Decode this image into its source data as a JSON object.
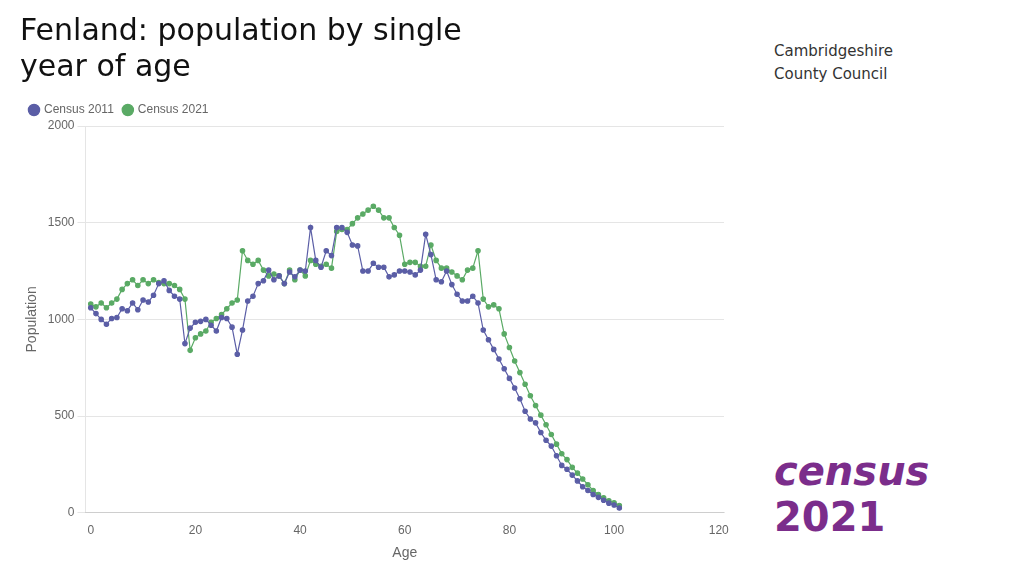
{
  "chart_data": {
    "type": "line",
    "title": [
      "Fenland: population by single",
      "year of age"
    ],
    "x_label": "Age",
    "y_label": "Population",
    "x": [
      0,
      1,
      2,
      3,
      4,
      5,
      6,
      7,
      8,
      9,
      10,
      11,
      12,
      13,
      14,
      15,
      16,
      17,
      18,
      19,
      20,
      21,
      22,
      23,
      24,
      25,
      26,
      27,
      28,
      29,
      30,
      31,
      32,
      33,
      34,
      35,
      36,
      37,
      38,
      39,
      40,
      41,
      42,
      43,
      44,
      45,
      46,
      47,
      48,
      49,
      50,
      51,
      52,
      53,
      54,
      55,
      56,
      57,
      58,
      59,
      60,
      61,
      62,
      63,
      64,
      65,
      66,
      67,
      68,
      69,
      70,
      71,
      72,
      73,
      74,
      75,
      76,
      77,
      78,
      79,
      80,
      81,
      82,
      83,
      84,
      85,
      86,
      87,
      88,
      89,
      90,
      91,
      92,
      93,
      94,
      95,
      96,
      97,
      98,
      99,
      100,
      101
    ],
    "series": [
      {
        "name": "Census 2011",
        "color": "#5b5ea6",
        "marker": "circle",
        "line_style": "solid",
        "values": [
          1060,
          1030,
          1000,
          975,
          1005,
          1010,
          1055,
          1045,
          1085,
          1050,
          1100,
          1090,
          1125,
          1185,
          1200,
          1150,
          1120,
          1105,
          875,
          955,
          985,
          990,
          1000,
          970,
          940,
          1010,
          1005,
          960,
          820,
          945,
          1095,
          1120,
          1185,
          1200,
          1255,
          1205,
          1225,
          1185,
          1245,
          1220,
          1255,
          1250,
          1475,
          1305,
          1270,
          1355,
          1330,
          1475,
          1475,
          1450,
          1385,
          1380,
          1250,
          1250,
          1290,
          1270,
          1270,
          1220,
          1230,
          1250,
          1250,
          1245,
          1230,
          1255,
          1440,
          1335,
          1205,
          1195,
          1250,
          1180,
          1130,
          1095,
          1095,
          1120,
          1085,
          945,
          895,
          845,
          795,
          745,
          695,
          645,
          590,
          525,
          485,
          465,
          415,
          375,
          345,
          295,
          245,
          225,
          195,
          165,
          135,
          115,
          95,
          80,
          65,
          50,
          40,
          25
        ]
      },
      {
        "name": "Census 2021",
        "color": "#5aaa65",
        "marker": "circle",
        "line_style": "solid",
        "values": [
          1080,
          1065,
          1085,
          1060,
          1085,
          1105,
          1155,
          1185,
          1205,
          1175,
          1205,
          1185,
          1205,
          1190,
          1185,
          1185,
          1175,
          1155,
          1105,
          840,
          905,
          925,
          940,
          985,
          1005,
          1025,
          1055,
          1085,
          1100,
          1355,
          1305,
          1285,
          1305,
          1255,
          1225,
          1235,
          1225,
          1185,
          1255,
          1205,
          1255,
          1225,
          1305,
          1285,
          1275,
          1285,
          1265,
          1455,
          1465,
          1465,
          1495,
          1525,
          1545,
          1565,
          1585,
          1565,
          1525,
          1525,
          1475,
          1435,
          1285,
          1295,
          1295,
          1275,
          1275,
          1385,
          1305,
          1265,
          1265,
          1245,
          1225,
          1205,
          1255,
          1265,
          1355,
          1105,
          1065,
          1075,
          1055,
          925,
          855,
          785,
          725,
          665,
          605,
          555,
          505,
          455,
          405,
          355,
          305,
          275,
          235,
          205,
          175,
          145,
          115,
          95,
          78,
          62,
          52,
          38
        ]
      }
    ],
    "xlim": [
      -1,
      121
    ],
    "xticks": [
      0,
      20,
      40,
      60,
      80,
      100,
      120
    ],
    "ylim": [
      0,
      2000
    ],
    "yticks": [
      0,
      500,
      1000,
      1500,
      2000
    ],
    "grid": "y",
    "legend": "top left",
    "annotations": [
      {
        "text": "Cambridgeshire",
        "color": "#333333"
      },
      {
        "text": "County Council",
        "color": "#333333"
      },
      {
        "text": "census",
        "color": "#7b2d8b"
      },
      {
        "text": "2021",
        "color": "#7b2d8b"
      }
    ]
  }
}
